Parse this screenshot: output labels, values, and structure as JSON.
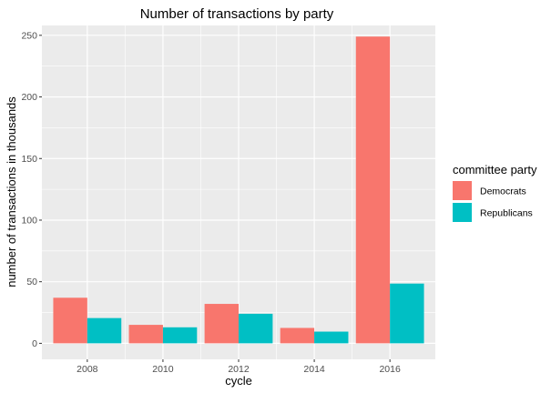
{
  "chart_data": {
    "type": "bar",
    "title": "Number of transactions by party",
    "xlabel": "cycle",
    "ylabel": "number of transactions in thousands",
    "categories": [
      "2008",
      "2010",
      "2012",
      "2014",
      "2016"
    ],
    "series": [
      {
        "name": "Democrats",
        "values": [
          37,
          15,
          32,
          12.5,
          249
        ],
        "color": "#F8766D"
      },
      {
        "name": "Republicans",
        "values": [
          20.5,
          13,
          24,
          9.5,
          48.5
        ],
        "color": "#00BFC4"
      }
    ],
    "ylim": [
      -13,
      258
    ],
    "yticks": [
      0,
      50,
      100,
      150,
      200,
      250
    ],
    "ytick_labels": [
      "0",
      "50",
      "100",
      "150",
      "200",
      "250"
    ],
    "grid": true,
    "legend": {
      "title": "committee party",
      "position": "right"
    },
    "colors": {
      "panel_background": "#EBEBEB",
      "gridline": "#FFFFFF"
    }
  }
}
